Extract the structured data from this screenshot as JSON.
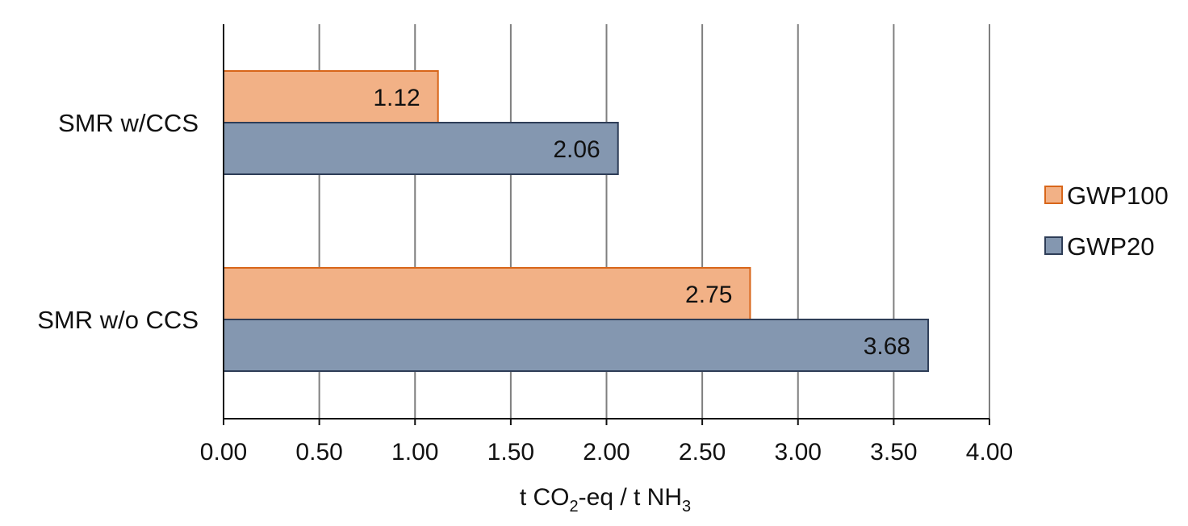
{
  "chart_data": {
    "type": "bar",
    "orientation": "horizontal",
    "categories": [
      "SMR w/CCS",
      "SMR w/o CCS"
    ],
    "series": [
      {
        "name": "GWP100",
        "values": [
          1.12,
          2.75
        ],
        "labels": [
          "1.12",
          "2.75"
        ],
        "color": "#f2b186",
        "stroke": "#d8661a"
      },
      {
        "name": "GWP20",
        "values": [
          2.06,
          3.68
        ],
        "labels": [
          "2.06",
          "3.68"
        ],
        "color": "#8497b0",
        "stroke": "#2e3d57"
      }
    ],
    "xlim": [
      0,
      4
    ],
    "xticks": [
      0,
      0.5,
      1,
      1.5,
      2,
      2.5,
      3,
      3.5,
      4
    ],
    "xtick_labels": [
      "0.00",
      "0.50",
      "1.00",
      "1.50",
      "2.00",
      "2.50",
      "3.00",
      "3.50",
      "4.00"
    ],
    "xlabel": {
      "part1": "t CO",
      "sub1": "2",
      "part2": "-eq / t NH",
      "sub2": "3"
    },
    "ylabel": "",
    "title": "",
    "grid": "vertical",
    "legend_position": "right"
  }
}
